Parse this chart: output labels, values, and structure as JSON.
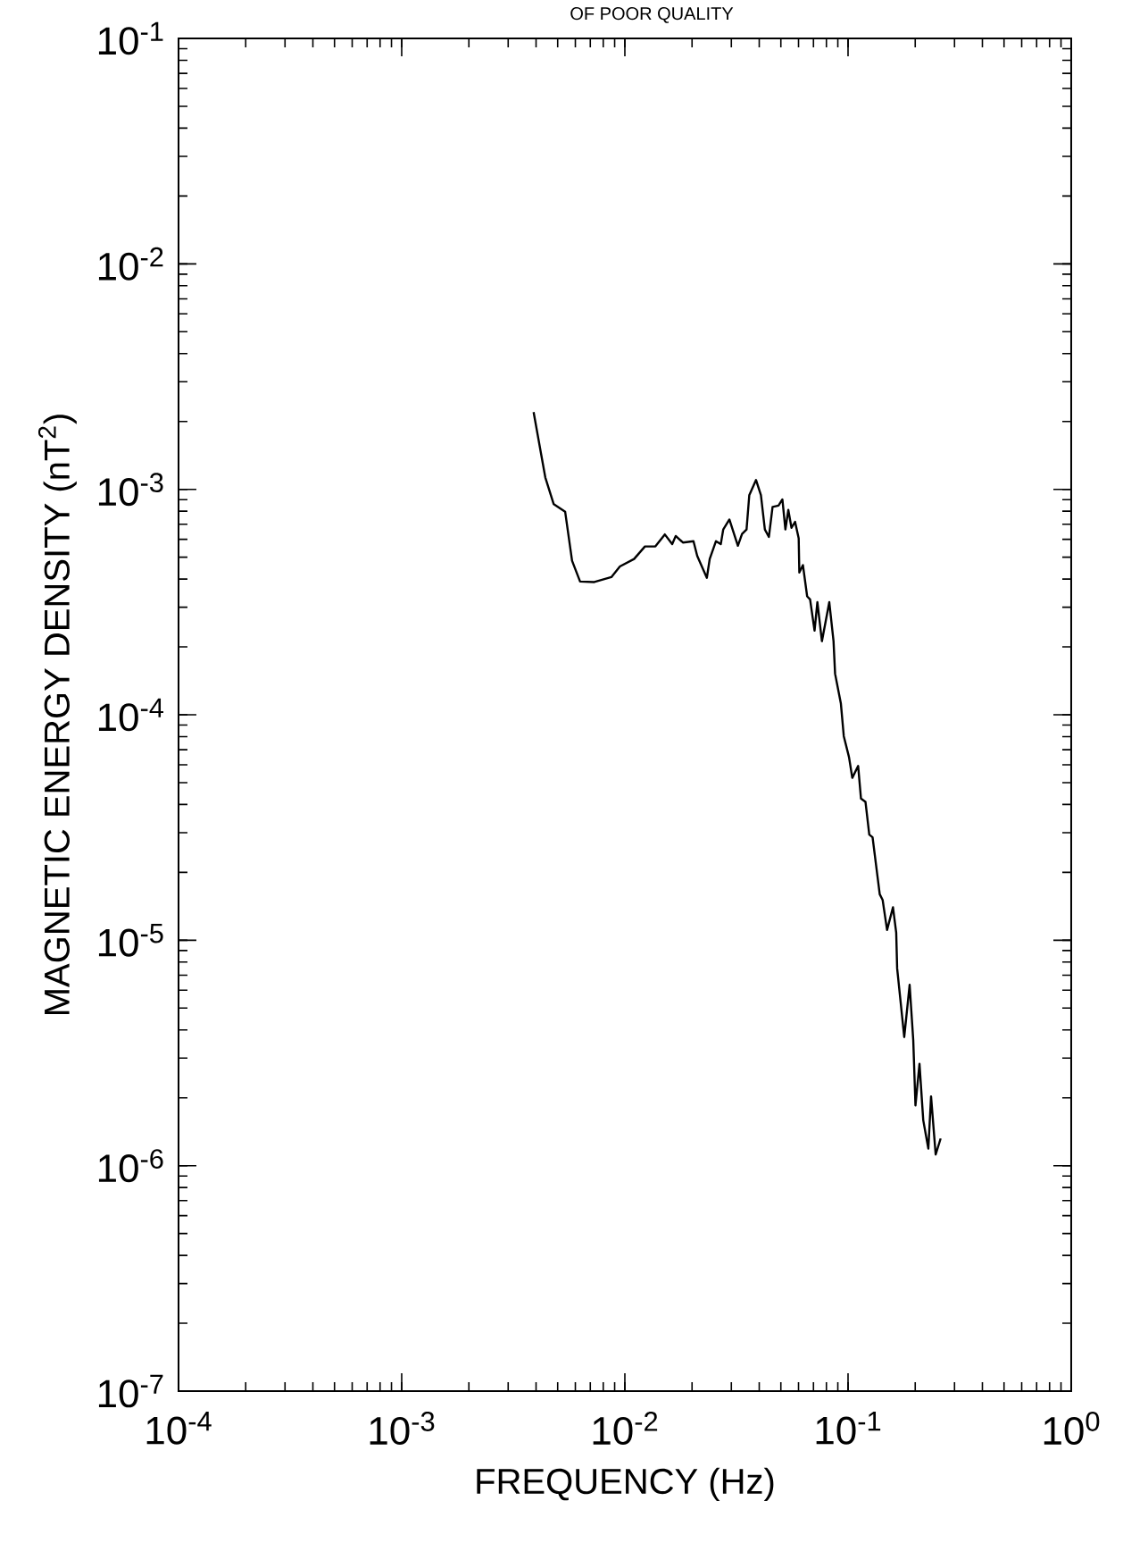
{
  "chart_data": {
    "type": "line",
    "xlabel": "FREQUENCY (Hz)",
    "ylabel": "MAGNETIC ENERGY DENSITY (nT$^{2}$)",
    "annotations": [
      "OF POOR QUALITY"
    ],
    "log": "xy",
    "marker": "none",
    "line_style": "solid",
    "color": "#000000",
    "xlim": [
      0.0001,
      1
    ],
    "ylim": [
      1e-07,
      0.1
    ],
    "xticks": [
      {
        "value": 0.0001,
        "label": "10$^{-4}$"
      },
      {
        "value": 0.001,
        "label": "10$^{-3}$"
      },
      {
        "value": 0.01,
        "label": "10$^{-2}$"
      },
      {
        "value": 0.1,
        "label": "10$^{-1}$"
      },
      {
        "value": 1,
        "label": "10$^{0}$"
      }
    ],
    "yticks": [
      {
        "value": 1e-07,
        "label": "10$^{-7}$"
      },
      {
        "value": 1e-06,
        "label": "10$^{-6}$"
      },
      {
        "value": 1e-05,
        "label": "10$^{-5}$"
      },
      {
        "value": 0.0001,
        "label": "10$^{-4}$"
      },
      {
        "value": 0.001,
        "label": "10$^{-3}$"
      },
      {
        "value": 0.01,
        "label": "10$^{-2}$"
      },
      {
        "value": 0.1,
        "label": "10$^{-1}$"
      }
    ],
    "x": [
      0.0039,
      0.0044,
      0.0048,
      0.0054,
      0.0058,
      0.0063,
      0.0073,
      0.0087,
      0.0095,
      0.011,
      0.0123,
      0.0137,
      0.0151,
      0.0163,
      0.0169,
      0.0182,
      0.0203,
      0.0211,
      0.0233,
      0.024,
      0.0256,
      0.0269,
      0.0276,
      0.0294,
      0.0321,
      0.0335,
      0.0351,
      0.0361,
      0.0387,
      0.0407,
      0.0424,
      0.0442,
      0.0459,
      0.0488,
      0.0508,
      0.0524,
      0.054,
      0.0558,
      0.0579,
      0.0601,
      0.0605,
      0.0628,
      0.0656,
      0.0676,
      0.0708,
      0.0729,
      0.0764,
      0.0824,
      0.0861,
      0.0875,
      0.0929,
      0.0957,
      0.101,
      0.1045,
      0.111,
      0.1143,
      0.1197,
      0.1245,
      0.1288,
      0.1387,
      0.1429,
      0.1496,
      0.159,
      0.1644,
      0.166,
      0.1786,
      0.1888,
      0.196,
      0.2005,
      0.209,
      0.2173,
      0.229,
      0.2355,
      0.247,
      0.26
    ],
    "values": [
      0.0022,
      0.00113,
      0.000859,
      0.000796,
      0.000482,
      0.00039,
      0.000388,
      0.000408,
      0.000455,
      0.000491,
      0.000558,
      0.000558,
      0.000631,
      0.000571,
      0.000621,
      0.000581,
      0.000589,
      0.000506,
      0.000405,
      0.000491,
      0.000589,
      0.000571,
      0.000664,
      0.000735,
      0.000562,
      0.000634,
      0.000664,
      0.000942,
      0.0011,
      0.000942,
      0.000664,
      0.000615,
      0.000836,
      0.000847,
      0.000902,
      0.000664,
      0.000811,
      0.000675,
      0.000718,
      0.000607,
      0.000428,
      0.000461,
      0.000335,
      0.000325,
      0.000236,
      0.000316,
      0.000212,
      0.000316,
      0.000212,
      0.000152,
      0.000112,
      8.04e-05,
      6.49e-05,
      5.25e-05,
      5.93e-05,
      4.25e-05,
      4.11e-05,
      2.94e-05,
      2.86e-05,
      1.6e-05,
      1.51e-05,
      1.11e-05,
      1.4e-05,
      1.08e-05,
      7.5e-06,
      3.72e-06,
      6.34e-06,
      3.61e-06,
      1.85e-06,
      2.83e-06,
      1.59e-06,
      1.19e-06,
      2.03e-06,
      1.12e-06,
      1.32e-06
    ]
  }
}
